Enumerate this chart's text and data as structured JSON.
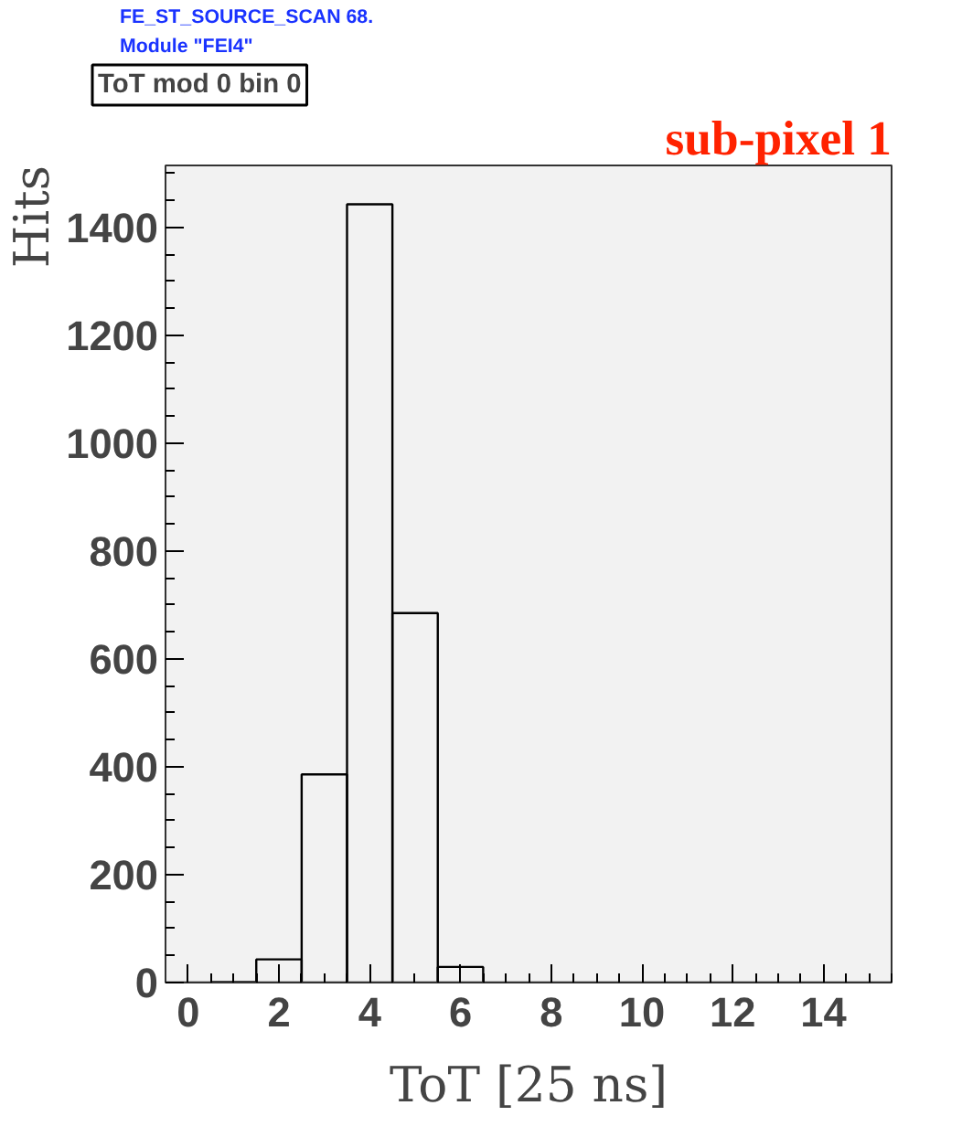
{
  "chart_data": {
    "type": "histogram",
    "title": "ToT mod 0 bin 0",
    "xlabel": "ToT [25 ns]",
    "ylabel": "Hits",
    "annotations": [
      "FE_ST_SOURCE_SCAN 68.",
      "Module \"FEI4\"",
      "sub-pixel 1"
    ],
    "bins": [
      -0.5,
      0.5,
      1.5,
      2.5,
      3.5,
      4.5,
      5.5,
      6.5,
      7.5,
      8.5,
      9.5,
      10.5,
      11.5,
      12.5,
      13.5,
      14.5,
      15.5
    ],
    "values": [
      0,
      1,
      43,
      386,
      1443,
      685,
      29,
      0,
      0,
      0,
      0,
      0,
      0,
      0,
      0,
      0
    ],
    "color": "#000000",
    "xlim": [
      -0.5,
      15.5
    ],
    "ylim": [
      0,
      1515
    ],
    "xticks": [
      0,
      2,
      4,
      6,
      8,
      10,
      12,
      14
    ],
    "yticks": [
      0,
      200,
      400,
      600,
      800,
      1000,
      1200,
      1400
    ],
    "grid": false
  }
}
